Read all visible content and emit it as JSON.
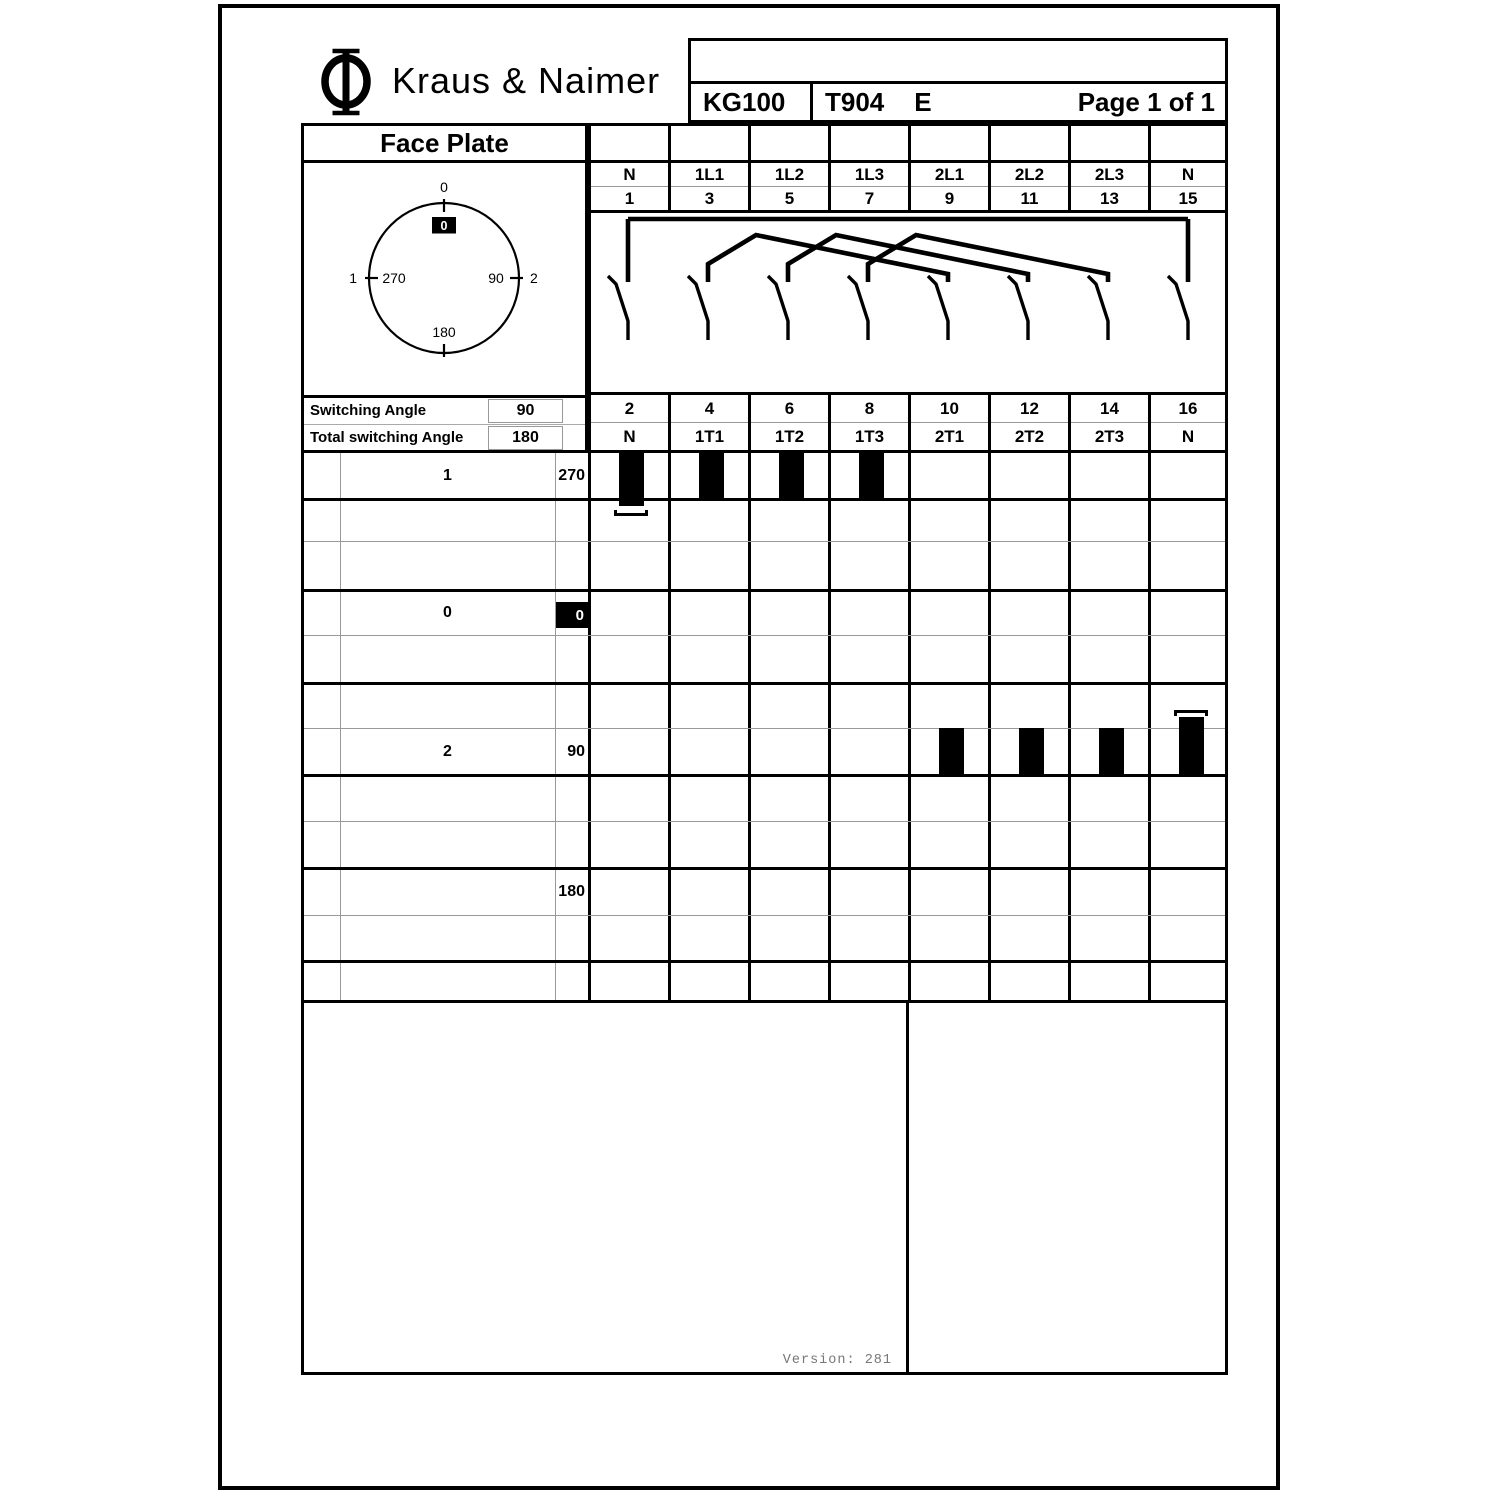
{
  "brand": {
    "name": "Kraus & Naimer",
    "logo_icon": "phi-icon"
  },
  "title_block": {
    "product": "KG100",
    "type": "T904",
    "variant": "E",
    "page": "Page 1 of 1"
  },
  "face_plate": {
    "title": "Face Plate",
    "dial": {
      "pos_top": "0",
      "pos_left": "1",
      "pos_right": "2",
      "angle_top_marker": "0",
      "angle_right": "90",
      "angle_left": "270",
      "angle_bottom": "180"
    },
    "switching_angle": {
      "label": "Switching Angle",
      "value": "90"
    },
    "total_switching_angle": {
      "label": "Total switching Angle",
      "value": "180"
    }
  },
  "terminals_top": [
    {
      "name": "N",
      "num": "1"
    },
    {
      "name": "1L1",
      "num": "3"
    },
    {
      "name": "1L2",
      "num": "5"
    },
    {
      "name": "1L3",
      "num": "7"
    },
    {
      "name": "2L1",
      "num": "9"
    },
    {
      "name": "2L2",
      "num": "11"
    },
    {
      "name": "2L3",
      "num": "13"
    },
    {
      "name": "N",
      "num": "15"
    }
  ],
  "terminals_bottom": [
    {
      "num": "2",
      "name": "N"
    },
    {
      "num": "4",
      "name": "1T1"
    },
    {
      "num": "6",
      "name": "1T2"
    },
    {
      "num": "8",
      "name": "1T3"
    },
    {
      "num": "10",
      "name": "2T1"
    },
    {
      "num": "12",
      "name": "2T2"
    },
    {
      "num": "14",
      "name": "2T3"
    },
    {
      "num": "16",
      "name": "N"
    }
  ],
  "schematic": {
    "contacts": 8,
    "bus_pair": [
      1,
      8
    ],
    "links": [
      [
        2,
        5
      ],
      [
        3,
        6
      ],
      [
        4,
        7
      ]
    ]
  },
  "matrix": {
    "rows": [
      {
        "pos": "1",
        "angle": "270",
        "bars": [
          1,
          2,
          3,
          4
        ],
        "extended": {
          "col": 1,
          "dir": "down"
        }
      },
      {},
      {},
      {
        "pos": "0",
        "angle": "0",
        "angle_inverted": true
      },
      {},
      {},
      {
        "pos": "2",
        "angle": "90",
        "bars": [
          5,
          6,
          7,
          8
        ],
        "extended": {
          "col": 8,
          "dir": "up"
        }
      },
      {},
      {},
      {
        "angle": "180"
      },
      {},
      {}
    ]
  },
  "footer": {
    "version": "Version: 281"
  }
}
